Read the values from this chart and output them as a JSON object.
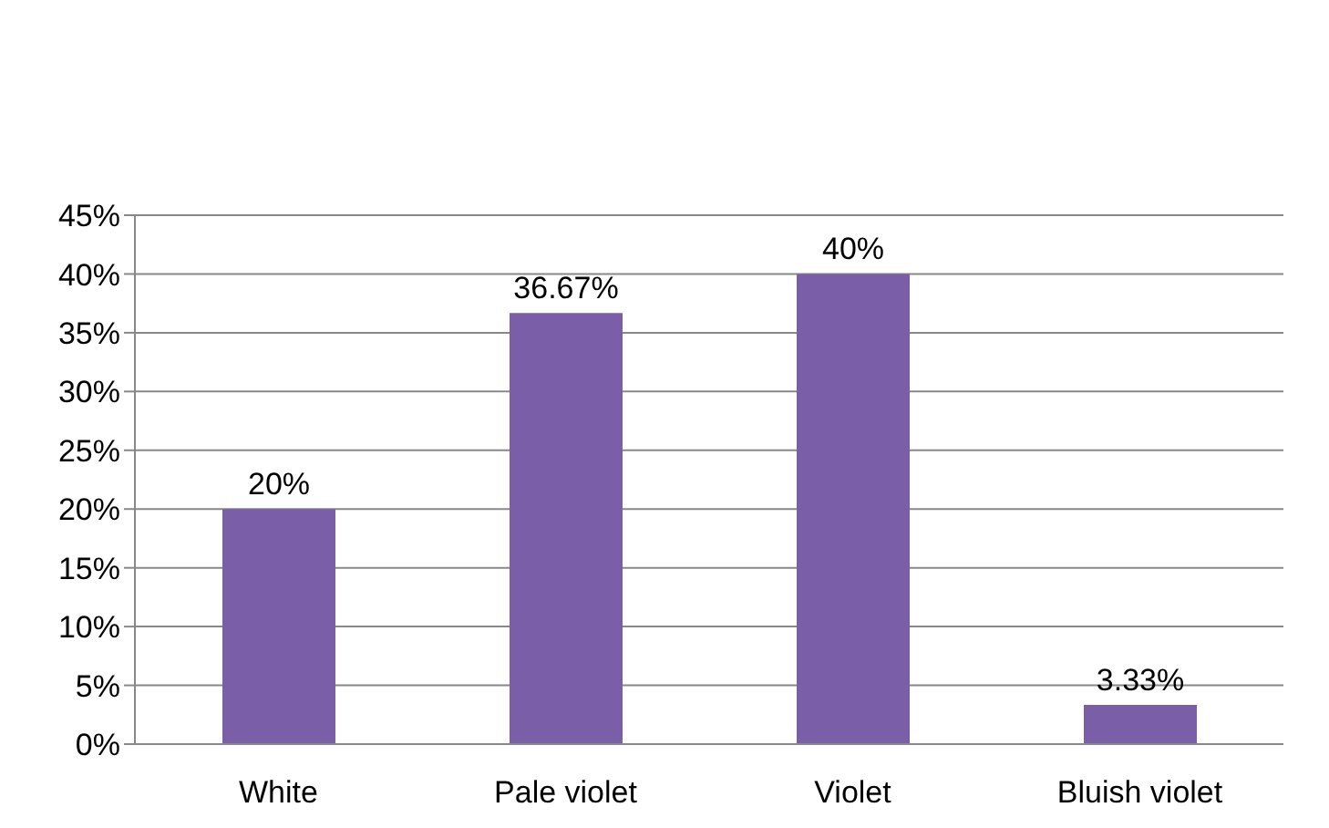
{
  "chart_data": {
    "type": "bar",
    "categories": [
      "White",
      "Pale violet",
      "Violet",
      "Bluish violet"
    ],
    "values": [
      20,
      36.67,
      40,
      3.33
    ],
    "value_labels": [
      "20%",
      "36.67%",
      "40%",
      "3.33%"
    ],
    "color": "#7b5ea8",
    "ylim": [
      0,
      45
    ],
    "yticks": [
      {
        "value": 0,
        "label": "0%"
      },
      {
        "value": 5,
        "label": "5%"
      },
      {
        "value": 10,
        "label": "10%"
      },
      {
        "value": 15,
        "label": "15%"
      },
      {
        "value": 20,
        "label": "20%"
      },
      {
        "value": 25,
        "label": "25%"
      },
      {
        "value": 30,
        "label": "30%"
      },
      {
        "value": 35,
        "label": "35%"
      },
      {
        "value": 40,
        "label": "40%"
      },
      {
        "value": 45,
        "label": "45%"
      }
    ],
    "grid": "y"
  }
}
